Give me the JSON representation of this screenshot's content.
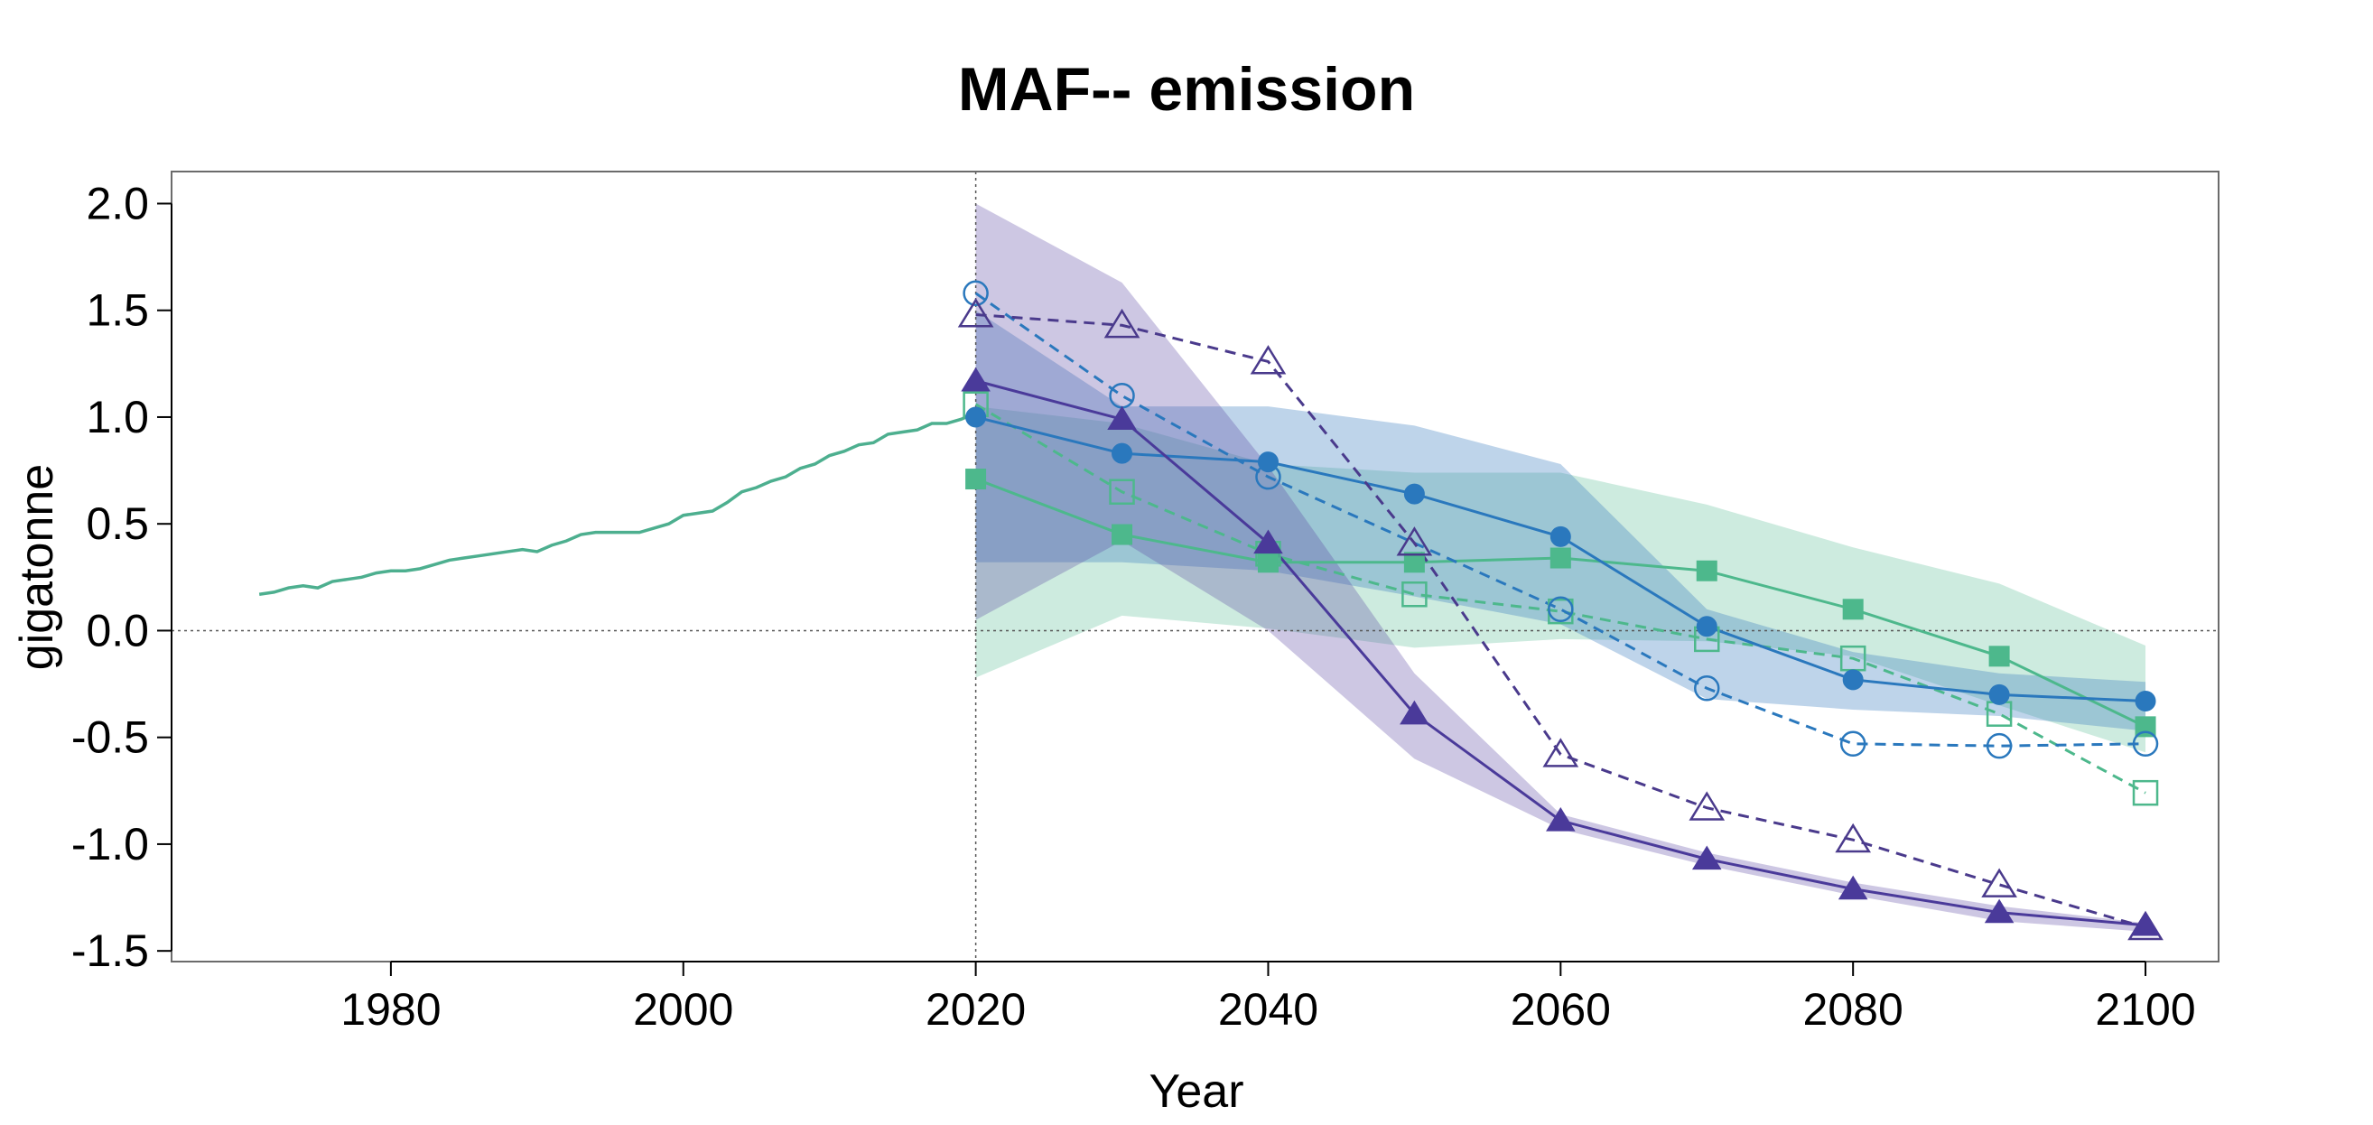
{
  "chart_data": {
    "type": "line",
    "title": "MAF-- emission",
    "xlabel": "Year",
    "ylabel": "gigatonne",
    "xlim": [
      1965,
      2105
    ],
    "ylim": [
      -1.55,
      2.15
    ],
    "xticks": [
      1980,
      2000,
      2020,
      2040,
      2060,
      2080,
      2100
    ],
    "xtick_labels": [
      "1980",
      "2000",
      "2020",
      "2040",
      "2060",
      "2080",
      "2100"
    ],
    "yticks": [
      2.0,
      1.5,
      1.0,
      0.5,
      0.0,
      -0.5,
      -1.0,
      -1.5
    ],
    "ytick_labels": [
      "2.0",
      "1.5",
      "1.0",
      "0.5",
      "0.0",
      "-0.5",
      "-1.0",
      "-1.5"
    ],
    "reference_lines": {
      "y": 0.0,
      "x": 2020
    },
    "historical": {
      "color": "#4daf8f",
      "x": [
        1971,
        1972,
        1973,
        1974,
        1975,
        1976,
        1977,
        1978,
        1979,
        1980,
        1981,
        1982,
        1983,
        1984,
        1985,
        1986,
        1987,
        1988,
        1989,
        1990,
        1991,
        1992,
        1993,
        1994,
        1995,
        1996,
        1997,
        1998,
        1999,
        2000,
        2001,
        2002,
        2003,
        2004,
        2005,
        2006,
        2007,
        2008,
        2009,
        2010,
        2011,
        2012,
        2013,
        2014,
        2015,
        2016,
        2017,
        2018,
        2019,
        2020
      ],
      "y": [
        0.17,
        0.18,
        0.2,
        0.21,
        0.2,
        0.23,
        0.24,
        0.25,
        0.27,
        0.28,
        0.28,
        0.29,
        0.31,
        0.33,
        0.34,
        0.35,
        0.36,
        0.37,
        0.38,
        0.37,
        0.4,
        0.42,
        0.45,
        0.46,
        0.46,
        0.46,
        0.46,
        0.48,
        0.5,
        0.54,
        0.55,
        0.56,
        0.6,
        0.65,
        0.67,
        0.7,
        0.72,
        0.76,
        0.78,
        0.82,
        0.84,
        0.87,
        0.88,
        0.92,
        0.93,
        0.94,
        0.97,
        0.97,
        0.99,
        1.02
      ]
    },
    "bands": [
      {
        "name": "green band",
        "color": "#4db88c",
        "opacity": 0.28,
        "x": [
          2020,
          2030,
          2040,
          2050,
          2060,
          2070,
          2080,
          2090,
          2100
        ],
        "upper": [
          1.05,
          0.97,
          0.78,
          0.74,
          0.74,
          0.59,
          0.39,
          0.22,
          -0.07
        ],
        "lower": [
          -0.22,
          0.07,
          0.01,
          -0.08,
          -0.04,
          -0.05,
          -0.12,
          -0.35,
          -0.57
        ]
      },
      {
        "name": "blue band",
        "color": "#3a7bbf",
        "opacity": 0.33,
        "x": [
          2020,
          2030,
          2040,
          2050,
          2060,
          2070,
          2080,
          2090,
          2100
        ],
        "upper": [
          1.5,
          1.05,
          1.05,
          0.96,
          0.78,
          0.1,
          -0.1,
          -0.2,
          -0.24
        ],
        "lower": [
          0.32,
          0.32,
          0.28,
          0.16,
          0.03,
          -0.32,
          -0.37,
          -0.4,
          -0.47
        ]
      },
      {
        "name": "purple band",
        "color": "#5b46a3",
        "opacity": 0.3,
        "x": [
          2020,
          2030,
          2040,
          2050,
          2060,
          2070,
          2080,
          2090,
          2100
        ],
        "upper": [
          2.0,
          1.63,
          0.77,
          -0.2,
          -0.86,
          -1.04,
          -1.18,
          -1.29,
          -1.37
        ],
        "lower": [
          0.05,
          0.42,
          0.0,
          -0.6,
          -0.93,
          -1.1,
          -1.24,
          -1.36,
          -1.41
        ]
      }
    ],
    "series": [
      {
        "name": "green dashed open squares",
        "color": "#4db88c",
        "dash": true,
        "marker": "square",
        "filled": false,
        "x": [
          2020,
          2030,
          2040,
          2050,
          2060,
          2070,
          2080,
          2090,
          2100
        ],
        "y": [
          1.06,
          0.65,
          0.36,
          0.17,
          0.09,
          -0.04,
          -0.13,
          -0.39,
          -0.76
        ]
      },
      {
        "name": "green solid filled squares",
        "color": "#4db88c",
        "dash": false,
        "marker": "square",
        "filled": true,
        "x": [
          2020,
          2030,
          2040,
          2050,
          2060,
          2070,
          2080,
          2090,
          2100
        ],
        "y": [
          0.71,
          0.45,
          0.32,
          0.32,
          0.34,
          0.28,
          0.1,
          -0.12,
          -0.45
        ]
      },
      {
        "name": "blue dashed open circles",
        "color": "#2a78bd",
        "dash": true,
        "marker": "circle",
        "filled": false,
        "x": [
          2020,
          2030,
          2040,
          2060,
          2070,
          2080,
          2090,
          2100
        ],
        "y": [
          1.58,
          1.1,
          0.72,
          0.1,
          -0.27,
          -0.53,
          -0.54,
          -0.53
        ]
      },
      {
        "name": "blue solid filled circles",
        "color": "#2a78bd",
        "dash": false,
        "marker": "circle",
        "filled": true,
        "x": [
          2020,
          2030,
          2040,
          2050,
          2060,
          2070,
          2080,
          2090,
          2100
        ],
        "y": [
          1.0,
          0.83,
          0.79,
          0.64,
          0.44,
          0.02,
          -0.23,
          -0.3,
          -0.33
        ]
      },
      {
        "name": "purple dashed open triangles",
        "color": "#4a3a8c",
        "dash": true,
        "marker": "triangle",
        "filled": false,
        "x": [
          2020,
          2030,
          2040,
          2050,
          2060,
          2070,
          2080,
          2090,
          2100
        ],
        "y": [
          1.48,
          1.43,
          1.26,
          0.41,
          -0.58,
          -0.83,
          -0.98,
          -1.19,
          -1.39
        ]
      },
      {
        "name": "purple solid filled triangles",
        "color": "#4a3a9a",
        "dash": false,
        "marker": "triangle",
        "filled": true,
        "x": [
          2020,
          2030,
          2040,
          2050,
          2060,
          2070,
          2080,
          2090,
          2100
        ],
        "y": [
          1.17,
          0.99,
          0.41,
          -0.39,
          -0.89,
          -1.07,
          -1.21,
          -1.32,
          -1.38
        ]
      }
    ]
  }
}
